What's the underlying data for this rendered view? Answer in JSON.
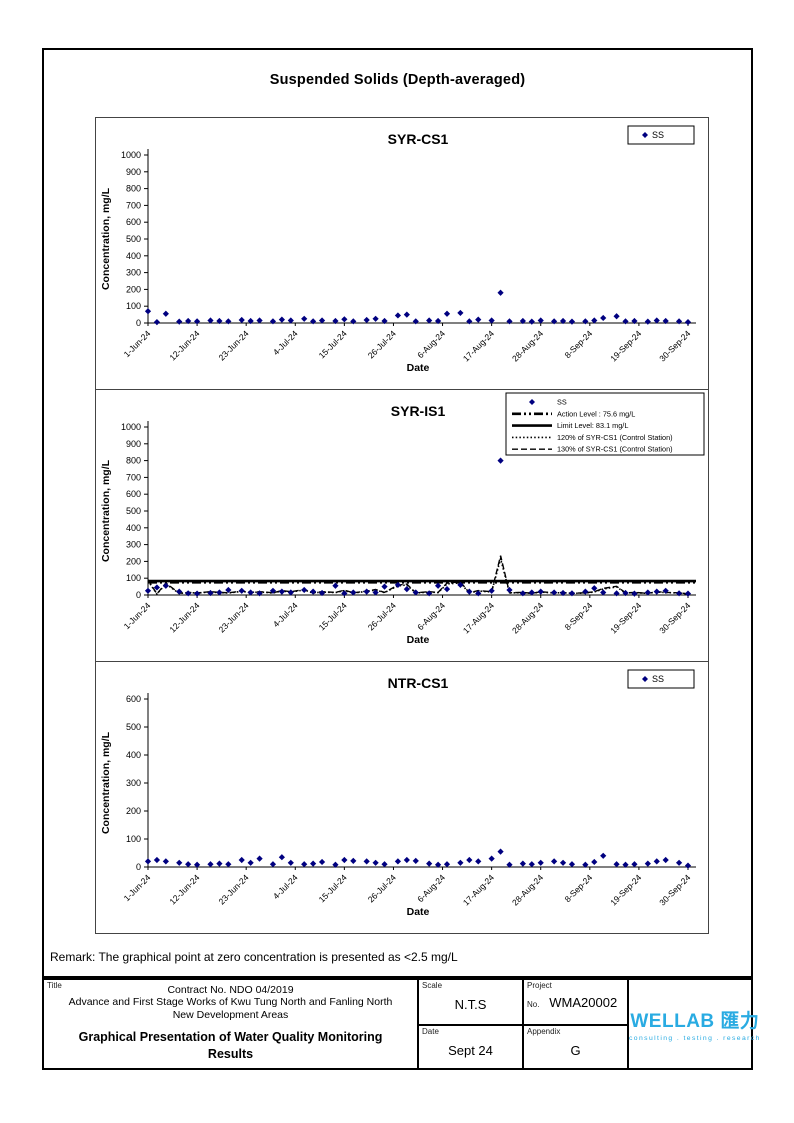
{
  "page": {
    "title": "Suspended Solids (Depth-averaged)",
    "remark": "Remark: The graphical point at zero concentration is presented as <2.5 mg/L"
  },
  "chart_data": [
    {
      "type": "scatter",
      "station": "SYR-CS1",
      "title": "SYR-CS1",
      "xlabel": "Date",
      "ylabel": "Concentration, mg/L",
      "ylim": [
        0,
        1000
      ],
      "ytick_step": 100,
      "xtick_labels": [
        "1-Jun-24",
        "12-Jun-24",
        "23-Jun-24",
        "4-Jul-24",
        "15-Jul-24",
        "26-Jul-24",
        "6-Aug-24",
        "17-Aug-24",
        "28-Aug-24",
        "8-Sep-24",
        "19-Sep-24",
        "30-Sep-24"
      ],
      "xtick_day_offsets": [
        0,
        11,
        22,
        33,
        44,
        55,
        66,
        77,
        88,
        99,
        110,
        121
      ],
      "x_day_offsets": [
        0,
        2,
        4,
        7,
        9,
        11,
        14,
        16,
        18,
        21,
        23,
        25,
        28,
        30,
        32,
        35,
        37,
        39,
        42,
        44,
        46,
        49,
        51,
        53,
        56,
        58,
        60,
        63,
        65,
        67,
        70,
        72,
        74,
        77,
        79,
        81,
        84,
        86,
        88,
        91,
        93,
        95,
        98,
        100,
        102,
        105,
        107,
        109,
        112,
        114,
        116,
        119,
        121
      ],
      "series": [
        {
          "name": "SS",
          "marker": "diamond",
          "color": "#000080",
          "values": [
            70,
            5,
            55,
            8,
            12,
            10,
            15,
            12,
            10,
            18,
            12,
            15,
            10,
            20,
            15,
            25,
            10,
            15,
            12,
            22,
            10,
            18,
            25,
            12,
            45,
            50,
            10,
            15,
            12,
            55,
            60,
            10,
            20,
            15,
            180,
            10,
            12,
            8,
            15,
            10,
            12,
            8,
            10,
            15,
            30,
            40,
            10,
            12,
            8,
            15,
            12,
            10,
            5
          ]
        }
      ],
      "legend": [
        {
          "type": "marker",
          "label": "SS"
        }
      ],
      "legend_position": "top-right",
      "grid": false
    },
    {
      "type": "scatter",
      "station": "SYR-IS1",
      "title": "SYR-IS1",
      "xlabel": "Date",
      "ylabel": "Concentration, mg/L",
      "ylim": [
        0,
        1000
      ],
      "ytick_step": 100,
      "xtick_labels": [
        "1-Jun-24",
        "12-Jun-24",
        "23-Jun-24",
        "4-Jul-24",
        "15-Jul-24",
        "26-Jul-24",
        "6-Aug-24",
        "17-Aug-24",
        "28-Aug-24",
        "8-Sep-24",
        "19-Sep-24",
        "30-Sep-24"
      ],
      "xtick_day_offsets": [
        0,
        11,
        22,
        33,
        44,
        55,
        66,
        77,
        88,
        99,
        110,
        121
      ],
      "x_day_offsets": [
        0,
        2,
        4,
        7,
        9,
        11,
        14,
        16,
        18,
        21,
        23,
        25,
        28,
        30,
        32,
        35,
        37,
        39,
        42,
        44,
        46,
        49,
        51,
        53,
        56,
        58,
        60,
        63,
        65,
        67,
        70,
        72,
        74,
        77,
        79,
        81,
        84,
        86,
        88,
        91,
        93,
        95,
        98,
        100,
        102,
        105,
        107,
        109,
        112,
        114,
        116,
        119,
        121
      ],
      "series": [
        {
          "name": "SS",
          "marker": "diamond",
          "color": "#000080",
          "values": [
            25,
            45,
            55,
            20,
            10,
            8,
            12,
            15,
            30,
            25,
            15,
            10,
            25,
            20,
            15,
            30,
            20,
            12,
            55,
            10,
            15,
            20,
            15,
            50,
            60,
            35,
            15,
            10,
            55,
            35,
            60,
            20,
            10,
            25,
            800,
            30,
            10,
            15,
            20,
            15,
            12,
            10,
            20,
            40,
            15,
            10,
            12,
            8,
            15,
            20,
            25,
            10,
            8
          ]
        }
      ],
      "ref_lines": [
        {
          "label": "Action Level : 75.6 mg/L",
          "value": 75.6,
          "style": "dashdotdot"
        },
        {
          "label": "Limit Level: 83.1 mg/L",
          "value": 83.1,
          "style": "solid"
        }
      ],
      "derived_lines": [
        {
          "label": "120% of SYR-CS1 (Control Station)",
          "factor": 1.2,
          "source": 0,
          "style": "dotted"
        },
        {
          "label": "130% of SYR-CS1 (Control Station)",
          "factor": 1.3,
          "source": 0,
          "style": "dashed"
        }
      ],
      "legend": [
        {
          "type": "marker",
          "label": "SS"
        },
        {
          "type": "line",
          "style": "dashdotdot",
          "label": "Action Level : 75.6 mg/L"
        },
        {
          "type": "line",
          "style": "solid",
          "label": "Limit Level: 83.1 mg/L"
        },
        {
          "type": "line",
          "style": "dotted",
          "label": "120% of SYR-CS1 (Control Station)"
        },
        {
          "type": "line",
          "style": "dashed",
          "label": "130% of SYR-CS1 (Control Station)"
        }
      ],
      "legend_position": "top-right",
      "grid": false
    },
    {
      "type": "scatter",
      "station": "NTR-CS1",
      "title": "NTR-CS1",
      "xlabel": "Date",
      "ylabel": "Concentration, mg/L",
      "ylim": [
        0,
        600
      ],
      "ytick_step": 100,
      "xtick_labels": [
        "1-Jun-24",
        "12-Jun-24",
        "23-Jun-24",
        "4-Jul-24",
        "15-Jul-24",
        "26-Jul-24",
        "6-Aug-24",
        "17-Aug-24",
        "28-Aug-24",
        "8-Sep-24",
        "19-Sep-24",
        "30-Sep-24"
      ],
      "xtick_day_offsets": [
        0,
        11,
        22,
        33,
        44,
        55,
        66,
        77,
        88,
        99,
        110,
        121
      ],
      "x_day_offsets": [
        0,
        2,
        4,
        7,
        9,
        11,
        14,
        16,
        18,
        21,
        23,
        25,
        28,
        30,
        32,
        35,
        37,
        39,
        42,
        44,
        46,
        49,
        51,
        53,
        56,
        58,
        60,
        63,
        65,
        67,
        70,
        72,
        74,
        77,
        79,
        81,
        84,
        86,
        88,
        91,
        93,
        95,
        98,
        100,
        102,
        105,
        107,
        109,
        112,
        114,
        116,
        119,
        121
      ],
      "series": [
        {
          "name": "SS",
          "marker": "diamond",
          "color": "#000080",
          "values": [
            20,
            25,
            20,
            15,
            10,
            8,
            10,
            12,
            10,
            25,
            15,
            30,
            10,
            35,
            15,
            10,
            12,
            18,
            8,
            25,
            22,
            20,
            15,
            10,
            20,
            25,
            22,
            12,
            8,
            10,
            15,
            25,
            20,
            30,
            55,
            8,
            12,
            10,
            15,
            20,
            15,
            10,
            8,
            18,
            40,
            10,
            8,
            10,
            12,
            20,
            25,
            15,
            5
          ]
        }
      ],
      "legend": [
        {
          "type": "marker",
          "label": "SS"
        }
      ],
      "legend_position": "top-right",
      "grid": false
    }
  ],
  "footer": {
    "title_label": "Title",
    "contract_line1": "Contract No. NDO 04/2019",
    "contract_line2": "Advance and First Stage Works of Kwu Tung North and Fanling North New Development Areas",
    "doc_title": "Graphical Presentation of Water Quality Monitoring Results",
    "scale_label": "Scale",
    "scale_value": "N.T.S",
    "project_label": "Project",
    "project_no_label": "No.",
    "project_value": "WMA20002",
    "date_label": "Date",
    "date_value": "Sept 24",
    "appendix_label": "Appendix",
    "appendix_value": "G",
    "logo_text": "WELLAB 匯力",
    "logo_tagline": "consulting . testing . research",
    "logo_color": "#29abe2"
  },
  "colors": {
    "marker": "#000080",
    "reference_lines": "#000000",
    "logo": "#29abe2"
  }
}
